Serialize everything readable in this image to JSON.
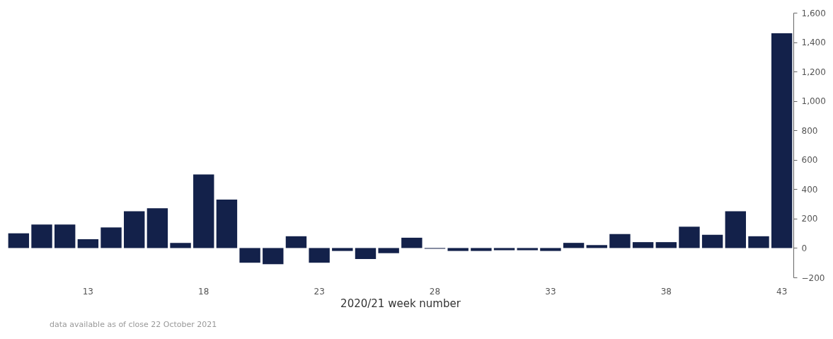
{
  "chart_data": {
    "type": "bar",
    "xlabel": "2020/21 week number",
    "categories": [
      null,
      null,
      null,
      "13",
      null,
      null,
      null,
      null,
      "18",
      null,
      null,
      null,
      null,
      "23",
      null,
      null,
      null,
      null,
      "28",
      null,
      null,
      null,
      null,
      "33",
      null,
      null,
      null,
      null,
      "38",
      null,
      null,
      null,
      null,
      "43"
    ],
    "values": [
      100,
      160,
      160,
      60,
      140,
      250,
      270,
      35,
      500,
      330,
      -100,
      -110,
      80,
      -100,
      -20,
      -75,
      -35,
      70,
      -5,
      -20,
      -20,
      -15,
      -15,
      -20,
      35,
      20,
      95,
      40,
      40,
      145,
      90,
      250,
      80,
      1460
    ],
    "color": "#13214a",
    "ylim": [
      -200,
      1600
    ],
    "yticks": [
      -200,
      0,
      200,
      400,
      600,
      800,
      {
        "value": 1000,
        "label": "1,000"
      },
      {
        "value": 1200,
        "label": "1,200"
      },
      {
        "value": 1400,
        "label": "1,400"
      },
      {
        "value": 1600,
        "label": "1,600"
      }
    ],
    "grid": false,
    "annotations": [
      "data available as of close 22 October 2021"
    ]
  }
}
